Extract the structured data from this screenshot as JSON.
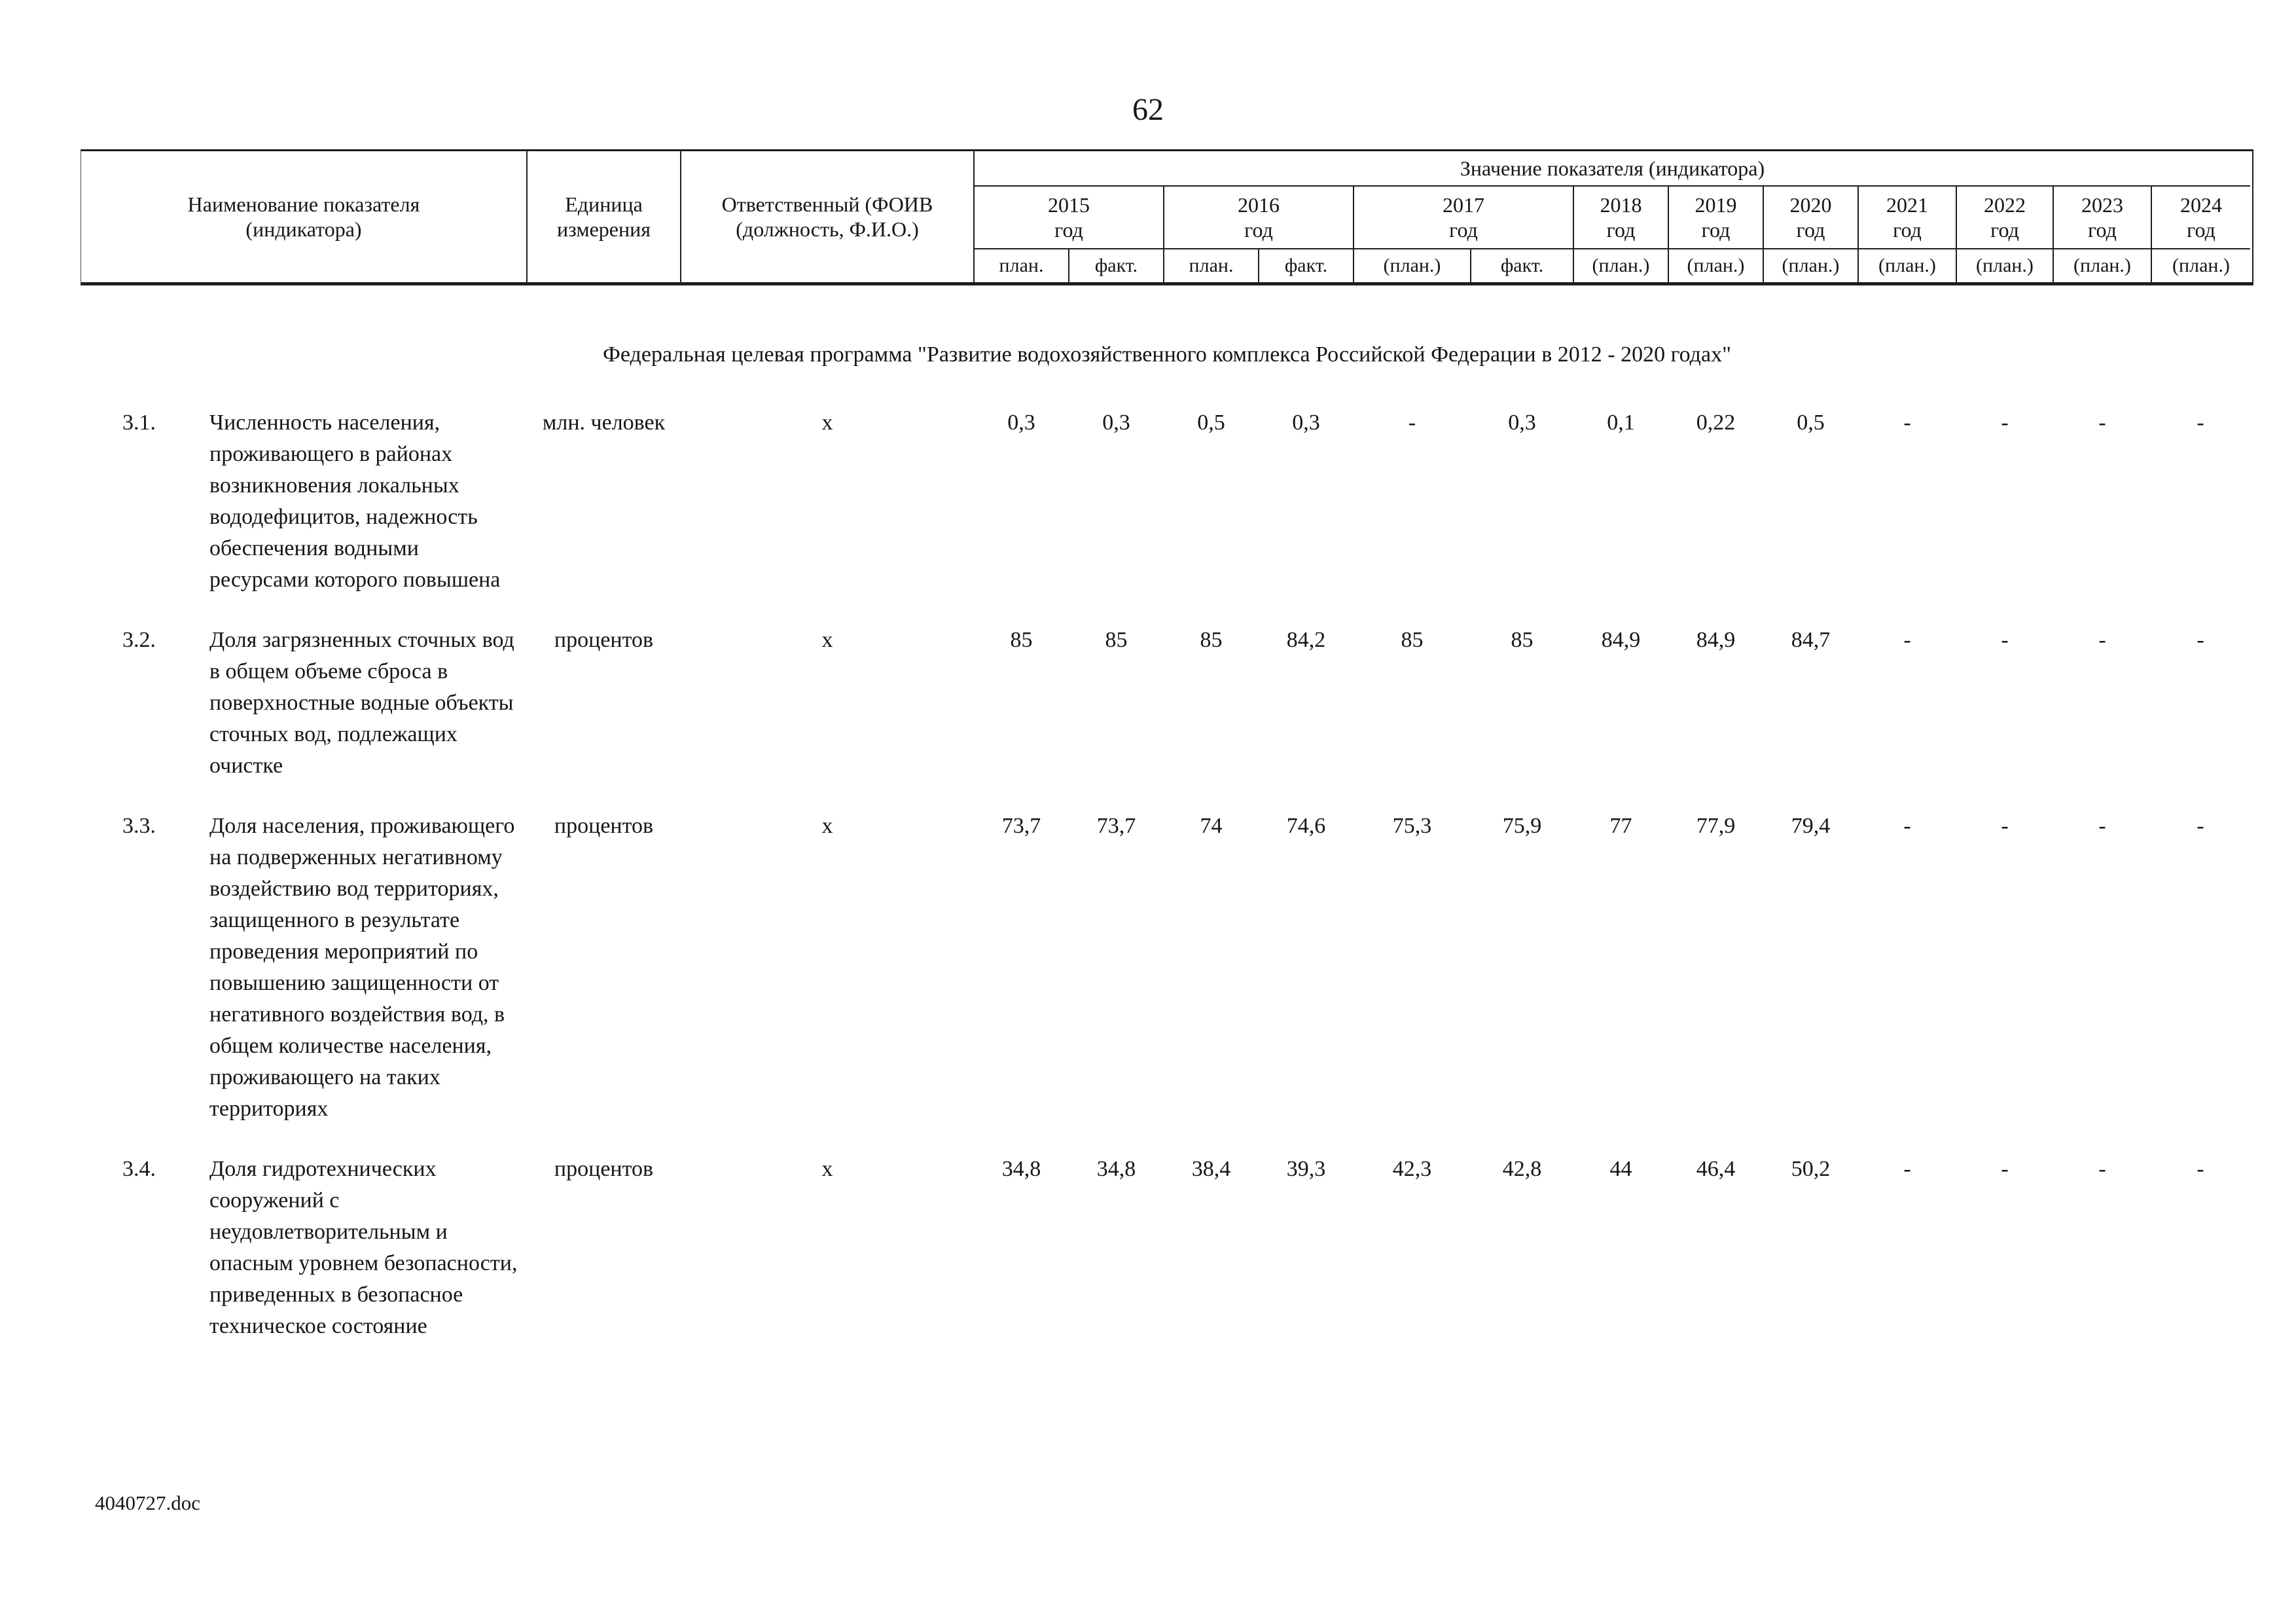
{
  "page": {
    "number": "62",
    "footer": "4040727.doc"
  },
  "table": {
    "header": {
      "col_name": "Наименование показателя (индикатора)",
      "col_unit": "Единица измерения",
      "col_responsible": "Ответственный (ФОИВ (должность, Ф.И.О.)",
      "values_title": "Значение показателя (индикатора)",
      "year_word": "год",
      "years": [
        "2015",
        "2016",
        "2017",
        "2018",
        "2019",
        "2020",
        "2021",
        "2022",
        "2023",
        "2024"
      ],
      "subcols": [
        "план.",
        "факт.",
        "план.",
        "факт.",
        "(план.)",
        "факт.",
        "(план.)",
        "(план.)",
        "(план.)",
        "(план.)",
        "(план.)",
        "(план.)",
        "(план.)"
      ]
    },
    "section_title": "Федеральная целевая программа \"Развитие водохозяйственного комплекса Российской Федерации в 2012 - 2020 годах\"",
    "rows": [
      {
        "num": "3.1.",
        "name": "Численность населения, проживающего в районах возникновения локальных вододефицитов, надежность обеспечения водными ресурсами которого повышена",
        "unit": "млн. человек",
        "responsible": "х",
        "values": [
          "0,3",
          "0,3",
          "0,5",
          "0,3",
          "-",
          "0,3",
          "0,1",
          "0,22",
          "0,5",
          "-",
          "-",
          "-",
          "-"
        ]
      },
      {
        "num": "3.2.",
        "name": "Доля загрязненных сточных вод в общем объеме сброса в поверхностные водные объекты сточных вод, подлежащих очистке",
        "unit": "процентов",
        "responsible": "х",
        "values": [
          "85",
          "85",
          "85",
          "84,2",
          "85",
          "85",
          "84,9",
          "84,9",
          "84,7",
          "-",
          "-",
          "-",
          "-"
        ]
      },
      {
        "num": "3.3.",
        "name": "Доля населения, проживающего на подверженных негативному воздействию вод территориях, защищенного в результате проведения мероприятий по повышению защищенности от негативного воздействия вод, в общем количестве населения, проживающего на таких территориях",
        "unit": "процентов",
        "responsible": "х",
        "values": [
          "73,7",
          "73,7",
          "74",
          "74,6",
          "75,3",
          "75,9",
          "77",
          "77,9",
          "79,4",
          "-",
          "-",
          "-",
          "-"
        ]
      },
      {
        "num": "3.4.",
        "name": "Доля гидротехнических сооружений с неудовлетворительным и опасным уровнем безопасности, приведенных в безопасное техническое состояние",
        "unit": "процентов",
        "responsible": "х",
        "values": [
          "34,8",
          "34,8",
          "38,4",
          "39,3",
          "42,3",
          "42,8",
          "44",
          "46,4",
          "50,2",
          "-",
          "-",
          "-",
          "-"
        ]
      }
    ]
  }
}
